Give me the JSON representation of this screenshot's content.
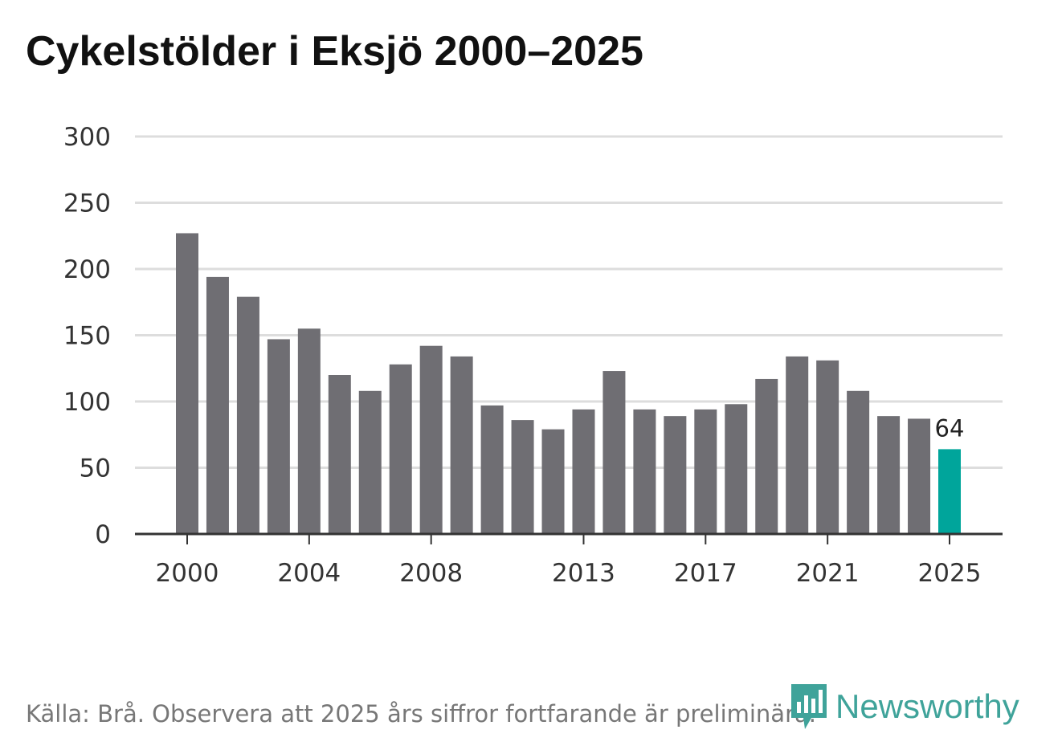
{
  "colors": {
    "bar": "#6f6e73",
    "highlight": "#00a59b",
    "grid": "#dddddd",
    "axis": "#333333",
    "brand": "#3fa39a"
  },
  "brand": {
    "name": "Newsworthy",
    "logo_icon": "bar-chart-pin-icon"
  },
  "source_note": "Källa: Brå. Observera att 2025 års siffror fortfarande är preliminära.",
  "chart_data": {
    "type": "bar",
    "title": "Cykelstölder i Eksjö 2000–2025",
    "xlabel": "",
    "ylabel": "",
    "ylim": [
      0,
      300
    ],
    "yticks": [
      0,
      50,
      100,
      150,
      200,
      250,
      300
    ],
    "xtick_labels": [
      "2000",
      "2004",
      "2008",
      "2013",
      "2017",
      "2021",
      "2025"
    ],
    "categories": [
      "2000",
      "2001",
      "2002",
      "2003",
      "2004",
      "2005",
      "2006",
      "2007",
      "2008",
      "2009",
      "2010",
      "2011",
      "2012",
      "2013",
      "2014",
      "2015",
      "2016",
      "2017",
      "2018",
      "2019",
      "2020",
      "2021",
      "2022",
      "2023",
      "2024",
      "2025"
    ],
    "values": [
      227,
      194,
      179,
      147,
      155,
      120,
      108,
      128,
      142,
      134,
      97,
      86,
      79,
      94,
      123,
      94,
      89,
      94,
      98,
      117,
      134,
      131,
      108,
      89,
      87,
      64
    ],
    "highlight_category": "2025",
    "data_labels": [
      {
        "category": "2025",
        "text": "64"
      }
    ],
    "grid": true
  }
}
